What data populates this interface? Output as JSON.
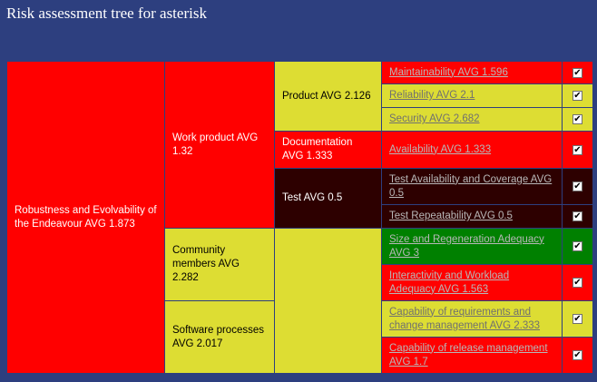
{
  "page": {
    "title": "Risk assessment tree for asterisk"
  },
  "colors": {
    "background": "#2d3f7f",
    "red": "#ff0000",
    "yellow": "#dddd33",
    "dark": "#2d0000",
    "green": "#008000"
  },
  "tree": {
    "root": {
      "label": "Robustness and Evolvability of the Endeavour AVG 1.873",
      "status": "red"
    },
    "work_product": {
      "label": "Work product AVG 1.32",
      "status": "red"
    },
    "community": {
      "label": "Community members AVG 2.282",
      "status": "yellow"
    },
    "processes": {
      "label": "Software processes AVG 2.017",
      "status": "yellow"
    },
    "product": {
      "label": "Product AVG 2.126",
      "status": "yellow"
    },
    "documentation": {
      "label": "Documentation AVG 1.333",
      "status": "red"
    },
    "test": {
      "label": "Test AVG 0.5",
      "status": "dark"
    },
    "community_sub": {
      "label": "",
      "status": "yellow"
    },
    "leaves": [
      {
        "label": "Maintainability AVG 1.596",
        "status": "red",
        "checked": true,
        "check_glyph": "✔"
      },
      {
        "label": "Reliability AVG 2.1",
        "status": "yellow",
        "checked": true,
        "check_glyph": "✔"
      },
      {
        "label": "Security AVG 2.682",
        "status": "yellow",
        "checked": true,
        "check_glyph": "✔"
      },
      {
        "label": "Availability AVG 1.333",
        "status": "red",
        "checked": true,
        "check_glyph": "✔"
      },
      {
        "label": "Test Availability and Coverage AVG 0.5",
        "status": "dark",
        "checked": true,
        "check_glyph": "✔"
      },
      {
        "label": "Test Repeatability AVG 0.5",
        "status": "dark",
        "checked": true,
        "check_glyph": "✔"
      },
      {
        "label": "Size and Regeneration Adequacy AVG 3",
        "status": "green",
        "checked": true,
        "check_glyph": "✔"
      },
      {
        "label": "Interactivity and Workload Adequacy AVG 1.563",
        "status": "red",
        "checked": true,
        "check_glyph": "✔"
      },
      {
        "label": "Capability of requirements and change management AVG 2.333",
        "status": "yellow",
        "checked": true,
        "check_glyph": "✔"
      },
      {
        "label": "Capability of release management AVG 1.7",
        "status": "red",
        "checked": true,
        "check_glyph": "✔"
      }
    ]
  }
}
